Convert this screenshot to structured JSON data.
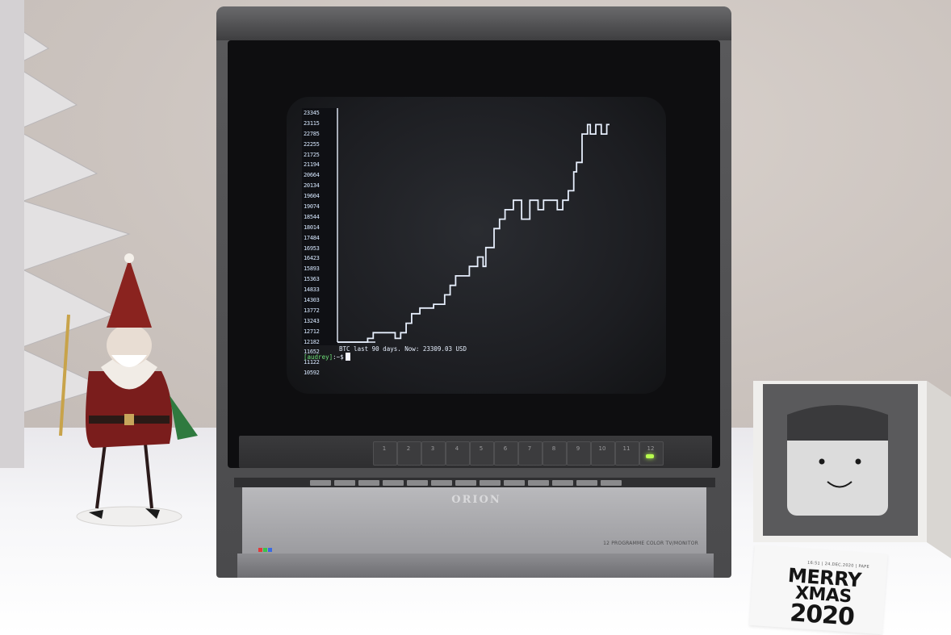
{
  "scene": "photo",
  "monitor": {
    "brand": "ORION",
    "model_text": "12 PROGRAMME COLOR TV/MONITOR",
    "channel_buttons": [
      "1",
      "2",
      "3",
      "4",
      "5",
      "6",
      "7",
      "8",
      "9",
      "10",
      "11",
      "12"
    ],
    "power_led_color": "#b8ff4e"
  },
  "terminal": {
    "y_axis_labels": [
      "23345",
      "23115",
      "22785",
      "22255",
      "21725",
      "21194",
      "20664",
      "20134",
      "19604",
      "19074",
      "18544",
      "18014",
      "17484",
      "16953",
      "16423",
      "15893",
      "15363",
      "14833",
      "14303",
      "13772",
      "13243",
      "12712",
      "12182",
      "11652",
      "11122",
      "10592"
    ],
    "status_line": "BTC last 90 days. Now: 23309.03 USD",
    "prompt_user": "[audrey]",
    "prompt_sep": ":",
    "prompt_path": "~$",
    "text_color": "#e6eefc",
    "prompt_color": "#6fe27a"
  },
  "btc_series": [
    10592,
    10592,
    10592,
    10592,
    10592,
    10592,
    10592,
    10592,
    10592,
    10592,
    10592,
    10800,
    10800,
    11122,
    11122,
    11122,
    11122,
    11122,
    11122,
    11122,
    11122,
    10800,
    10800,
    11122,
    11122,
    11652,
    11652,
    12182,
    12182,
    12182,
    12500,
    12500,
    12500,
    12500,
    12500,
    12712,
    12712,
    12712,
    12712,
    13243,
    13243,
    13772,
    13772,
    14303,
    14303,
    14303,
    14303,
    14303,
    14833,
    14833,
    14833,
    15363,
    15363,
    14833,
    15893,
    15893,
    15893,
    16953,
    16953,
    17484,
    17484,
    18014,
    18014,
    18014,
    18544,
    18544,
    18544,
    17484,
    17484,
    17484,
    18544,
    18544,
    18544,
    18014,
    18014,
    18544,
    18544,
    18544,
    18544,
    18544,
    18014,
    18014,
    18544,
    18544,
    19074,
    19074,
    20134,
    20664,
    20664,
    22255,
    22255,
    22785,
    22255,
    22255,
    22785,
    22785,
    22255,
    22255,
    22785,
    22785
  ],
  "printer": {
    "receipt_small": "16:51 | 24.DEC.2020 | PAPE",
    "receipt_line1": "MERRY",
    "receipt_line2": "XMAS",
    "receipt_line3": "2020"
  }
}
